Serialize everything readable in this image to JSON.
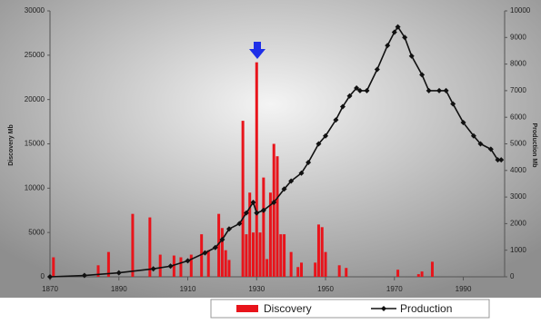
{
  "chart_data": {
    "type": "bar_line",
    "ylabel": "Discovery Mb",
    "y2label": "Production Mb",
    "xlim": [
      1870,
      2002
    ],
    "xticks": [
      1870,
      1890,
      1910,
      1930,
      1950,
      1970,
      1990
    ],
    "ylim": [
      0,
      30000
    ],
    "yticks": [
      0,
      5000,
      10000,
      15000,
      20000,
      25000,
      30000
    ],
    "y2lim": [
      0,
      10000
    ],
    "y2ticks": [
      0,
      1000,
      2000,
      3000,
      4000,
      5000,
      6000,
      7000,
      8000,
      9000,
      10000
    ],
    "legend": "bottom",
    "series": [
      {
        "name": "Discovery",
        "color": "#e8141b",
        "axis": "y",
        "x": [
          1871,
          1884,
          1887,
          1894,
          1899,
          1902,
          1906,
          1908,
          1911,
          1914,
          1916,
          1919,
          1920,
          1921,
          1922,
          1926,
          1927,
          1928,
          1929,
          1930,
          1931,
          1932,
          1933,
          1934,
          1935,
          1936,
          1937,
          1938,
          1940,
          1942,
          1943,
          1947,
          1948,
          1949,
          1950,
          1954,
          1956,
          1971,
          1977,
          1978,
          1981
        ],
        "values": [
          2200,
          1300,
          2800,
          7100,
          6700,
          2500,
          2400,
          2200,
          2500,
          4800,
          3000,
          7100,
          5500,
          3000,
          1900,
          17600,
          4800,
          9500,
          5000,
          24200,
          5000,
          11200,
          2000,
          9500,
          15000,
          13600,
          4800,
          4800,
          2800,
          1100,
          1600,
          1600,
          5900,
          5600,
          2800,
          1300,
          1000,
          800,
          300,
          600,
          1700
        ]
      },
      {
        "name": "Production",
        "color": "#111111",
        "axis": "y2",
        "x": [
          1870,
          1880,
          1890,
          1900,
          1905,
          1910,
          1915,
          1918,
          1920,
          1922,
          1925,
          1927,
          1929,
          1930,
          1932,
          1935,
          1938,
          1940,
          1943,
          1945,
          1948,
          1950,
          1953,
          1955,
          1957,
          1959,
          1960,
          1962,
          1965,
          1968,
          1970,
          1971,
          1973,
          1975,
          1978,
          1980,
          1983,
          1985,
          1987,
          1990,
          1993,
          1995,
          1998,
          2000,
          2001
        ],
        "values": [
          0,
          50,
          150,
          300,
          400,
          600,
          900,
          1100,
          1400,
          1800,
          2000,
          2400,
          2800,
          2400,
          2500,
          2800,
          3300,
          3600,
          3900,
          4300,
          5000,
          5300,
          5900,
          6400,
          6800,
          7100,
          7000,
          7000,
          7800,
          8700,
          9200,
          9400,
          9000,
          8300,
          7600,
          7000,
          7000,
          7000,
          6500,
          5800,
          5300,
          5000,
          4800,
          4400,
          4400
        ]
      }
    ]
  }
}
